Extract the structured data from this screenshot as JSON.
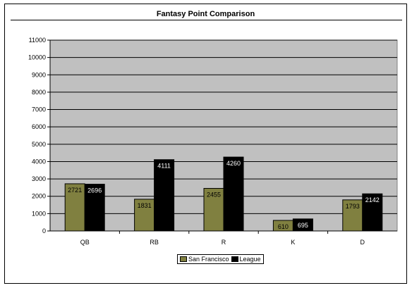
{
  "chart_data": {
    "type": "bar",
    "title": "Fantasy Point Comparison",
    "xlabel": "",
    "ylabel": "",
    "categories": [
      "QB",
      "RB",
      "R",
      "K",
      "D"
    ],
    "series": [
      {
        "name": "San Francisco",
        "values": [
          2721,
          1831,
          2455,
          610,
          1793
        ],
        "color": "#808040",
        "label_color": "#000000"
      },
      {
        "name": "League",
        "values": [
          2696,
          4111,
          4260,
          695,
          2142
        ],
        "color": "#000000",
        "label_color": "#ffffff"
      }
    ],
    "ylim": [
      0,
      11000
    ],
    "yticks": [
      0,
      1000,
      2000,
      3000,
      4000,
      5000,
      6000,
      7000,
      8000,
      9000,
      10000,
      11000
    ],
    "grid": true,
    "plot_background": "#c0c0c0",
    "legend_position": "bottom-center"
  }
}
